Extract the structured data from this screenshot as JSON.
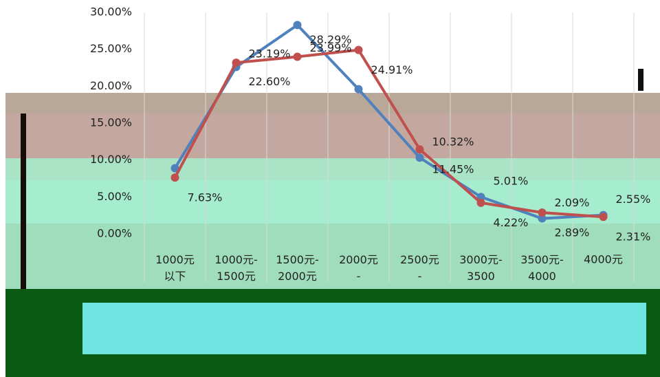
{
  "chart_data": {
    "type": "line",
    "categories": [
      "1000元以下",
      "1000元-1500元",
      "1500元-2000元",
      "2000元-",
      "2500元-",
      "3000元-3500",
      "3500元-4000",
      "4000元"
    ],
    "series": [
      {
        "color": "#4f81bd",
        "values": [
          8.9,
          22.6,
          28.29,
          19.6,
          10.32,
          5.01,
          2.09,
          2.55
        ],
        "value_labels": [
          null,
          "22.60%",
          "28.29%",
          null,
          "10.32%",
          "5.01%",
          "2.09%",
          "2.55%"
        ]
      },
      {
        "color": "#c0504d",
        "values": [
          7.63,
          23.19,
          23.99,
          24.91,
          11.45,
          4.22,
          2.89,
          2.31
        ],
        "value_labels": [
          "7.63%",
          "23.19%",
          "23.99%",
          "24.91%",
          "11.45%",
          "4.22%",
          "2.89%",
          "2.31%"
        ]
      }
    ],
    "ylim": [
      0,
      30
    ],
    "yticks": [
      {
        "value": 0,
        "label": "0.00%"
      },
      {
        "value": 5,
        "label": "5.00%"
      },
      {
        "value": 10,
        "label": "10.00%"
      },
      {
        "value": 15,
        "label": "15.00%"
      },
      {
        "value": 20,
        "label": "20.00%"
      },
      {
        "value": 25,
        "label": "25.00%"
      },
      {
        "value": 30,
        "label": "30.00%"
      }
    ],
    "grid": true
  }
}
